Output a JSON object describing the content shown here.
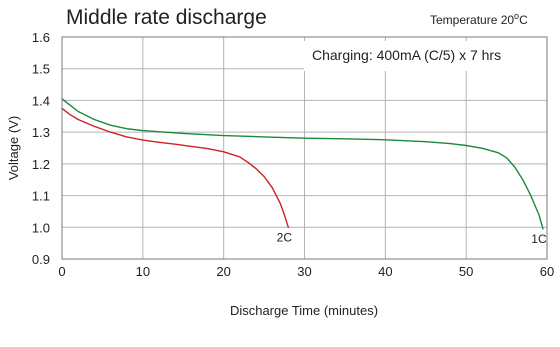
{
  "chart_data": {
    "type": "line",
    "title": "Middle rate discharge",
    "temperature_note": {
      "prefix": "Temperature 20",
      "superscript": "o",
      "suffix": "C"
    },
    "annotation": "Charging: 400mA (C/5) x 7 hrs",
    "xlabel": "Discharge Time (minutes)",
    "ylabel": "Voltage (V)",
    "xlim": [
      0,
      60
    ],
    "ylim": [
      0.9,
      1.6
    ],
    "x_ticks": [
      0,
      10,
      20,
      30,
      40,
      50,
      60
    ],
    "y_ticks": [
      0.9,
      1.0,
      1.1,
      1.2,
      1.3,
      1.4,
      1.5,
      1.6
    ],
    "x_tick_labels": [
      "0",
      "10",
      "20",
      "30",
      "40",
      "50",
      "60"
    ],
    "y_tick_labels": [
      "0.9",
      "1.0",
      "1.1",
      "1.2",
      "1.3",
      "1.4",
      "1.5",
      "1.6"
    ],
    "grid": true,
    "series": [
      {
        "name": "1C",
        "color": "#1a8a3a",
        "x": [
          0,
          1,
          2,
          4,
          6,
          8,
          10,
          15,
          20,
          25,
          30,
          35,
          40,
          45,
          48,
          50,
          52,
          54,
          55,
          56,
          57,
          58,
          59,
          59.5
        ],
        "y": [
          1.405,
          1.385,
          1.365,
          1.34,
          1.322,
          1.311,
          1.305,
          1.296,
          1.289,
          1.285,
          1.281,
          1.279,
          1.276,
          1.27,
          1.264,
          1.258,
          1.249,
          1.235,
          1.219,
          1.19,
          1.15,
          1.1,
          1.04,
          0.995
        ]
      },
      {
        "name": "2C",
        "color": "#cc2222",
        "x": [
          0,
          1,
          2,
          4,
          6,
          8,
          10,
          12,
          14,
          16,
          18,
          20,
          22,
          23,
          24,
          25,
          26,
          27,
          27.5,
          28
        ],
        "y": [
          1.375,
          1.355,
          1.34,
          1.318,
          1.3,
          1.285,
          1.275,
          1.268,
          1.262,
          1.255,
          1.248,
          1.238,
          1.222,
          1.205,
          1.185,
          1.16,
          1.125,
          1.075,
          1.04,
          1.0
        ]
      }
    ]
  }
}
